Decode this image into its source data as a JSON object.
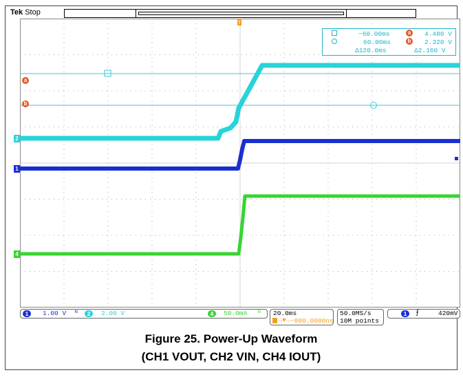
{
  "header": {
    "brand": "Tek",
    "status": "Stop"
  },
  "colors": {
    "ch1": "#1a2fd0",
    "ch2": "#2ad2d9",
    "ch4": "#37d531",
    "cursor": "#e8582a",
    "trigger": "#f0a020",
    "grid": "#9a9a9a",
    "cursor_line": "#3fc6d6"
  },
  "markers": {
    "ch2": "2",
    "ch1": "1",
    "ch4": "4",
    "cursor_a": "a",
    "cursor_b": "b",
    "trigger": "T"
  },
  "cursors": {
    "row1": {
      "time": "−60.00ms",
      "id": "a",
      "value": "4.480 V"
    },
    "row2": {
      "time": "60.00ms",
      "id": "b",
      "value": "2.320 V"
    },
    "row3": {
      "dtime": "Δ120.0ms",
      "dvalue": "Δ2.160 V"
    }
  },
  "status": {
    "ch1": {
      "id": "1",
      "scale": "1.00 V"
    },
    "ch2": {
      "id": "2",
      "scale": "2.00 V"
    },
    "ch4": {
      "id": "4",
      "scale": "50.0mA"
    },
    "timebase": "20.0ms",
    "delay": "−800.0000ns",
    "sample_rate": "50.0MS/s",
    "record": "10M points",
    "trigger": {
      "id": "1",
      "slope": "⨍",
      "level": "420mV"
    }
  },
  "caption": {
    "line1": "Figure 25. Power-Up Waveform",
    "line2": "(CH1 VOUT, CH2 VIN, CH4 IOUT)"
  }
}
